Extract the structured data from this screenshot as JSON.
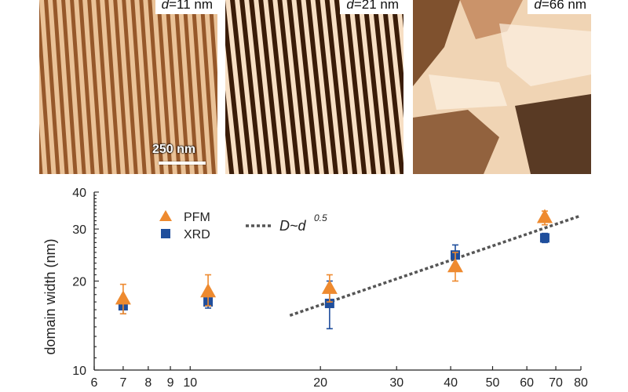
{
  "panels": [
    {
      "label_d": "d",
      "label_value": "=11 nm"
    },
    {
      "label_d": "d",
      "label_value": "=21 nm"
    },
    {
      "label_d": "d",
      "label_value": "=66 nm"
    }
  ],
  "scalebar_label": "250 nm",
  "colors": {
    "pfm": "#ee8a2f",
    "xrd": "#1f4e9c",
    "fit": "#555555",
    "afm_light": "#f4dcc0",
    "afm_dark": "#2a1405"
  },
  "chart_data": {
    "type": "scatter",
    "xscale": "log",
    "yscale": "log",
    "xlim": [
      6,
      80
    ],
    "ylim": [
      10,
      40
    ],
    "ylabel": "domain width (nm)",
    "xlabel": "",
    "x_ticks": [
      6,
      7,
      8,
      9,
      10,
      20,
      30,
      40,
      50,
      60,
      70,
      80
    ],
    "y_ticks": [
      10,
      20,
      30,
      40
    ],
    "series": [
      {
        "name": "PFM",
        "marker": "triangle",
        "points": [
          {
            "x": 7,
            "y": 17.5,
            "err_lo": 15.5,
            "err_hi": 19.5
          },
          {
            "x": 11,
            "y": 18.5,
            "err_lo": 16.5,
            "err_hi": 21.0
          },
          {
            "x": 21,
            "y": 19.0,
            "err_lo": 17.0,
            "err_hi": 21.0
          },
          {
            "x": 41,
            "y": 22.5,
            "err_lo": 20.0,
            "err_hi": 25.0
          },
          {
            "x": 66,
            "y": 33.0,
            "err_lo": 31.0,
            "err_hi": 34.5
          }
        ]
      },
      {
        "name": "XRD",
        "marker": "square",
        "points": [
          {
            "x": 7,
            "y": 16.5,
            "err_lo": 15.5,
            "err_hi": 17.5
          },
          {
            "x": 11,
            "y": 17.0,
            "err_lo": 16.2,
            "err_hi": 17.8
          },
          {
            "x": 21,
            "y": 16.8,
            "err_lo": 13.8,
            "err_hi": 20.0
          },
          {
            "x": 41,
            "y": 24.5,
            "err_lo": 22.5,
            "err_hi": 26.5
          },
          {
            "x": 66,
            "y": 28.0,
            "err_lo": 27.0,
            "err_hi": 29.0
          }
        ]
      }
    ],
    "fit": {
      "label": "D~d",
      "exponent_label": "0.5",
      "exponent": 0.5,
      "x": [
        17,
        80
      ],
      "y": [
        15.3,
        33.3
      ]
    },
    "legend": "top-left"
  }
}
